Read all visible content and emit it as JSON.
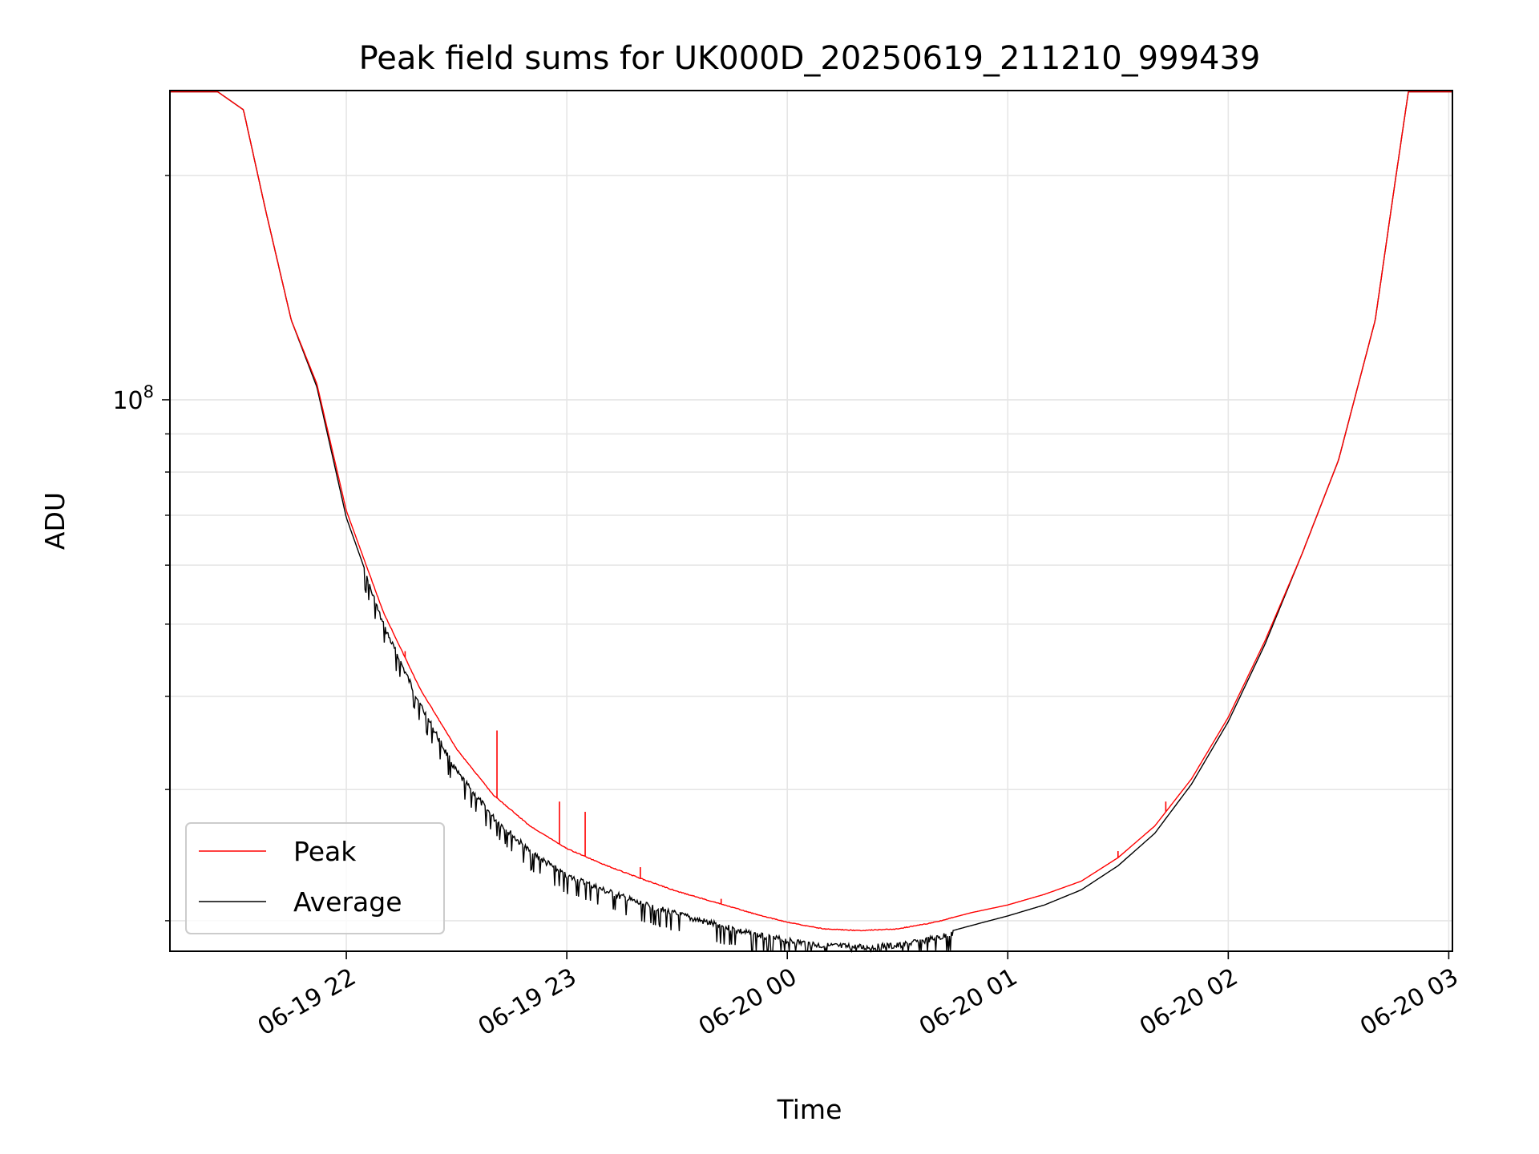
{
  "chart_data": {
    "type": "line",
    "title": "Peak field sums for UK000D_20250619_211210_999439",
    "xlabel": "Time",
    "ylabel": "ADU",
    "yscale": "log",
    "grid": true,
    "legend_placement": "lower-left",
    "xlim": [
      "2025-06-19 21:12",
      "2025-06-20 03:01"
    ],
    "ylim": [
      18200000,
      260000000
    ],
    "x_ticks": [
      {
        "x": "2025-06-19 22:00",
        "label": "06-19 22"
      },
      {
        "x": "2025-06-19 23:00",
        "label": "06-19 23"
      },
      {
        "x": "2025-06-20 00:00",
        "label": "06-20 00"
      },
      {
        "x": "2025-06-20 01:00",
        "label": "06-20 01"
      },
      {
        "x": "2025-06-20 02:00",
        "label": "06-20 02"
      },
      {
        "x": "2025-06-20 03:00",
        "label": "06-20 03"
      }
    ],
    "y_ticks_major": [
      {
        "y": 100000000,
        "base": "10",
        "exp": "8"
      }
    ],
    "x": [
      "2025-06-19 21:12",
      "2025-06-19 21:25",
      "2025-06-19 21:32",
      "2025-06-19 21:38",
      "2025-06-19 21:45",
      "2025-06-19 21:52",
      "2025-06-19 22:00",
      "2025-06-19 22:10",
      "2025-06-19 22:20",
      "2025-06-19 22:30",
      "2025-06-19 22:40",
      "2025-06-19 22:50",
      "2025-06-19 23:00",
      "2025-06-19 23:10",
      "2025-06-19 23:20",
      "2025-06-19 23:30",
      "2025-06-19 23:40",
      "2025-06-19 23:50",
      "2025-06-20 00:00",
      "2025-06-20 00:10",
      "2025-06-20 00:20",
      "2025-06-20 00:30",
      "2025-06-20 00:40",
      "2025-06-20 00:50",
      "2025-06-20 01:00",
      "2025-06-20 01:10",
      "2025-06-20 01:20",
      "2025-06-20 01:30",
      "2025-06-20 01:40",
      "2025-06-20 01:50",
      "2025-06-20 02:00",
      "2025-06-20 02:10",
      "2025-06-20 02:20",
      "2025-06-20 02:30",
      "2025-06-20 02:40",
      "2025-06-20 02:45",
      "2025-06-20 02:49",
      "2025-06-20 03:01"
    ],
    "series": [
      {
        "name": "Peak",
        "color": "#ff0000",
        "values": [
          259000000,
          259000000,
          245000000,
          180000000,
          128000000,
          105000000,
          71000000,
          52000000,
          41000000,
          34000000,
          29500000,
          26800000,
          25000000,
          23800000,
          22800000,
          21900000,
          21200000,
          20500000,
          19900000,
          19500000,
          19400000,
          19500000,
          19900000,
          20500000,
          21000000,
          21700000,
          22600000,
          24300000,
          26800000,
          31000000,
          37500000,
          47500000,
          62000000,
          83000000,
          128000000,
          190000000,
          259000000,
          259000000
        ],
        "spikes": [
          {
            "x": "2025-06-19 22:16",
            "y": 46000000
          },
          {
            "x": "2025-06-19 22:41",
            "y": 36000000
          },
          {
            "x": "2025-06-19 22:58",
            "y": 28900000
          },
          {
            "x": "2025-06-19 23:05",
            "y": 28000000
          },
          {
            "x": "2025-06-19 23:20",
            "y": 23600000
          },
          {
            "x": "2025-06-19 23:42",
            "y": 21400000
          },
          {
            "x": "2025-06-20 01:30",
            "y": 24800000
          },
          {
            "x": "2025-06-20 01:43",
            "y": 28900000
          }
        ]
      },
      {
        "name": "Average",
        "color": "#000000",
        "values": [
          259000000,
          259000000,
          245000000,
          180000000,
          128000000,
          104000000,
          69500000,
          50500000,
          39500000,
          32000000,
          27800000,
          25000000,
          23200000,
          22200000,
          21300000,
          20600000,
          20000000,
          19400000,
          19000000,
          18700000,
          18600000,
          18700000,
          19100000,
          19700000,
          20300000,
          21000000,
          22000000,
          23700000,
          26200000,
          30500000,
          37000000,
          47000000,
          62000000,
          83000000,
          128000000,
          190000000,
          259000000,
          259000000
        ]
      }
    ]
  }
}
